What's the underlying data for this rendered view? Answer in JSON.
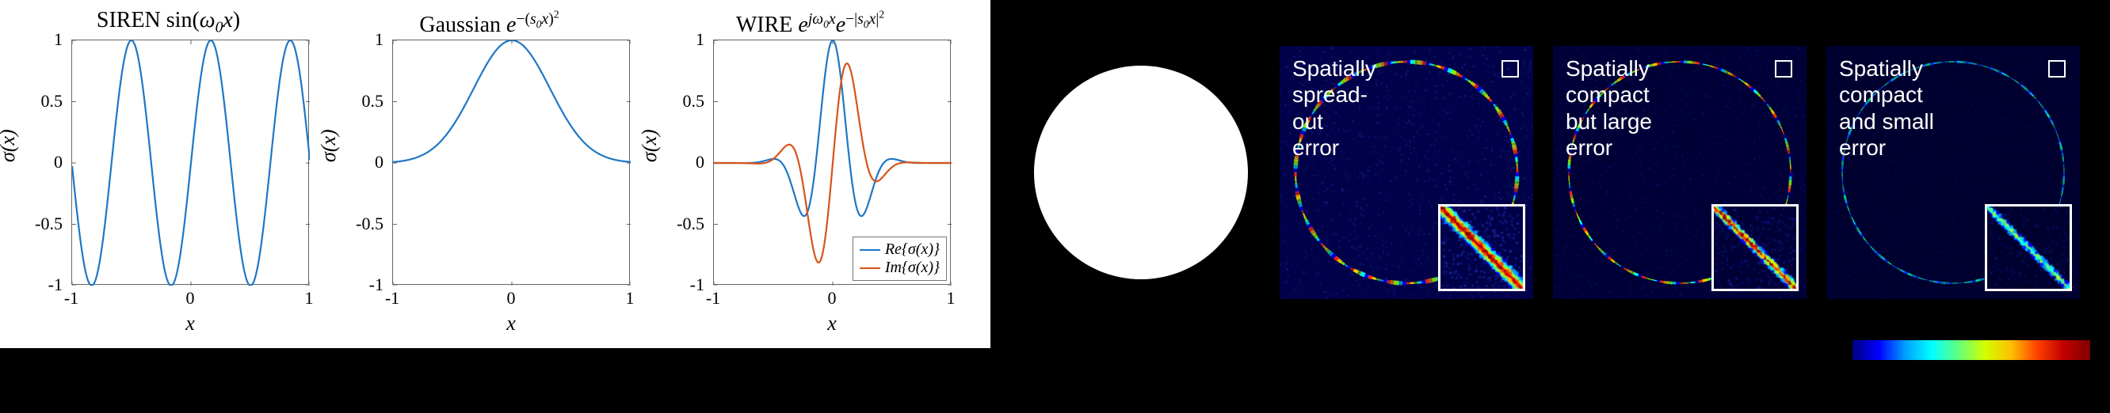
{
  "charts": [
    {
      "title_html": "SIREN sin(<span class='math'>ω</span><sub>0</sub><span class='math'>x</span>)",
      "ylabel": "σ(x)",
      "xlabel": "x",
      "xlim": [
        -1,
        1
      ],
      "ylim": [
        -1,
        1
      ],
      "xticks": [
        -1,
        0,
        1
      ],
      "yticks": [
        -1,
        -0.5,
        0,
        0.5,
        1
      ],
      "series": [
        {
          "name": "sine",
          "color": "#1f77c5",
          "width": 2.2,
          "type": "sine",
          "omega": 9.4,
          "amp": 1.0
        }
      ]
    },
    {
      "title_html": "Gaussian <span class='math'>e</span><sup>−(<span class='math'>s</span><sub>0</sub><span class='math'>x</span>)<sup>2</sup></sup>",
      "ylabel": "σ(x)",
      "xlabel": "x",
      "xlim": [
        -1,
        1
      ],
      "ylim": [
        -1,
        1
      ],
      "xticks": [
        -1,
        0,
        1
      ],
      "yticks": [
        -1,
        -0.5,
        0,
        0.5,
        1
      ],
      "series": [
        {
          "name": "gaussian",
          "color": "#1f77c5",
          "width": 2.2,
          "type": "gaussian",
          "s0": 2.2
        }
      ]
    },
    {
      "title_html": "WIRE <span class='math'>e</span><sup><span class='math'>jω</span><sub>0</sub><span class='math'>x</span></sup><span class='math'>e</span><sup>−|<span class='math'>s</span><sub>0</sub><span class='math'>x</span>|<sup>2</sup></sup>",
      "ylabel": "σ(x)",
      "xlabel": "x",
      "xlim": [
        -1,
        1
      ],
      "ylim": [
        -1,
        1
      ],
      "xticks": [
        -1,
        0,
        1
      ],
      "yticks": [
        -1,
        -0.5,
        0,
        0.5,
        1
      ],
      "series": [
        {
          "name": "Re{σ(x)}",
          "color": "#1f77c5",
          "width": 2.2,
          "type": "gabor_cos",
          "omega": 11,
          "s0": 3.5
        },
        {
          "name": "Im{σ(x)}",
          "color": "#d95319",
          "width": 2.2,
          "type": "gabor_sin",
          "omega": 11,
          "s0": 3.5
        }
      ],
      "legend": [
        {
          "label": "Re{σ(x)}",
          "color": "#1f77c5"
        },
        {
          "label": "Im{σ(x)}",
          "color": "#d95319"
        }
      ]
    }
  ],
  "plot_style": {
    "background": "#ffffff",
    "axis_color": "#666666",
    "tick_fontsize": 22,
    "label_fontsize": 26,
    "title_fontsize": 28
  },
  "ground_truth": {
    "type": "filled-disk",
    "disk_color": "#ffffff",
    "background": "#000000"
  },
  "error_panels": [
    {
      "text": "Spatially\nspread-\nout\nerror",
      "bg_low": "#02024a",
      "bg_noise": "#2030b0",
      "ring_colors": [
        "#00f",
        "#0ff",
        "#7fff00",
        "#ffd000",
        "#ff3000"
      ],
      "ring_width": 3.5,
      "inset_spread": 14,
      "inset_intensity": 1.0
    },
    {
      "text": "Spatially\ncompact\nbut large\nerror",
      "bg_low": "#010138",
      "bg_noise": "#101888",
      "ring_colors": [
        "#00f",
        "#0ff",
        "#7fff00",
        "#ffd000",
        "#ff3000"
      ],
      "ring_width": 2.2,
      "inset_spread": 8,
      "inset_intensity": 1.0
    },
    {
      "text": "Spatially\ncompact\nand small\nerror",
      "bg_low": "#010130",
      "bg_noise": "#0a1060",
      "ring_colors": [
        "#003aff",
        "#0aa0ff",
        "#00d080"
      ],
      "ring_width": 1.8,
      "inset_spread": 6,
      "inset_intensity": 0.5
    }
  ],
  "colorbar": {
    "stops": [
      "#000080",
      "#0000ff",
      "#00a0ff",
      "#00ffff",
      "#60ff80",
      "#d0ff00",
      "#ffc000",
      "#ff4000",
      "#c00000",
      "#800000"
    ]
  }
}
